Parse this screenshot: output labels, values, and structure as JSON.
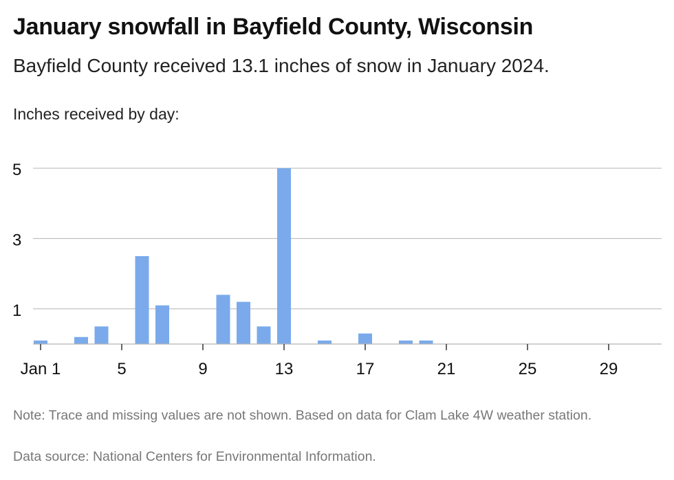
{
  "title": "January snowfall in Bayfield County, Wisconsin",
  "subtitle": "Bayfield County received 13.1 inches of snow in January 2024.",
  "note": "Note: Trace and missing values are not shown. Based on data for Clam Lake 4W weather station.",
  "source": "Data source: National Centers for Environmental Information.",
  "colors": {
    "bar": "#7aaaeb",
    "grid": "#b3b3b3",
    "axis": "#333333"
  },
  "chart_data": {
    "type": "bar",
    "title": "January snowfall in Bayfield County, Wisconsin",
    "ylabel": "Inches received by day:",
    "xlabel": "",
    "x": [
      1,
      2,
      3,
      4,
      5,
      6,
      7,
      8,
      9,
      10,
      11,
      12,
      13,
      14,
      15,
      16,
      17,
      18,
      19,
      20,
      21,
      22,
      23,
      24,
      25,
      26,
      27,
      28,
      29,
      30,
      31
    ],
    "values": [
      0.1,
      0,
      0.2,
      0.5,
      0,
      2.5,
      1.1,
      0,
      0,
      1.4,
      1.2,
      0.5,
      5.0,
      0,
      0.1,
      0,
      0.3,
      0,
      0.1,
      0.1,
      0,
      0,
      0,
      0,
      0,
      0,
      0,
      0,
      0,
      0,
      0
    ],
    "ylim": [
      0,
      5
    ],
    "y_ticks": [
      1,
      3,
      5
    ],
    "x_ticks": [
      1,
      5,
      9,
      13,
      17,
      21,
      25,
      29
    ],
    "x_tick_labels": [
      "Jan 1",
      "5",
      "9",
      "13",
      "17",
      "21",
      "25",
      "29"
    ],
    "grid": true,
    "legend": "none"
  }
}
